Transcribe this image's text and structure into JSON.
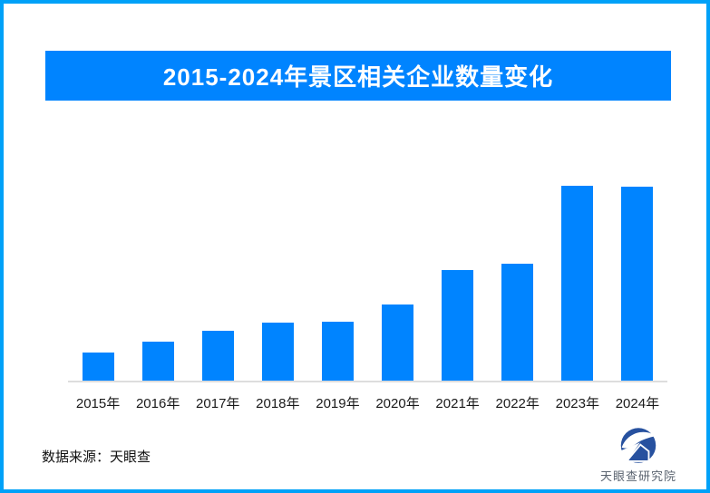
{
  "page": {
    "background": "#FFFFFF",
    "border_color": "#00A1F8"
  },
  "header": {
    "title": "2015-2024年景区相关企业数量变化",
    "banner_color": "#0084FF",
    "title_color": "#FFFFFF"
  },
  "chart_data": {
    "type": "bar",
    "title": "2015-2024年景区相关企业数量变化",
    "categories": [
      "2015年",
      "2016年",
      "2017年",
      "2018年",
      "2019年",
      "2020年",
      "2021年",
      "2022年",
      "2023年",
      "2024年"
    ],
    "values": [
      31,
      43,
      55,
      64,
      65,
      84,
      122,
      129,
      215,
      214
    ],
    "value_unit": "relative bar height in pixels (chart displays no y-axis, gridlines or data labels)",
    "bar_color": "#0084FF",
    "axis_line_color": "#DDDDDD",
    "xlabel": "",
    "ylabel": "",
    "grid": false,
    "legend": "none"
  },
  "footer": {
    "source_label": "数据来源：天眼查",
    "logo_text": "天眼查研究院",
    "logo_color": "#27519F",
    "logo_text_color": "#5B6470"
  }
}
